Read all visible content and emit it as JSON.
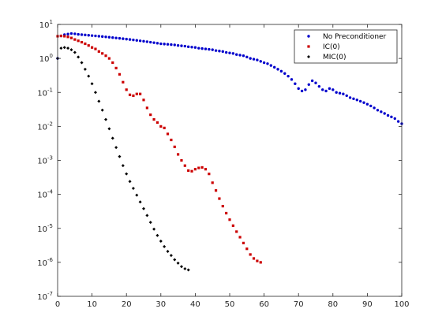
{
  "chart_data": {
    "type": "scatter",
    "title": "",
    "xlabel": "",
    "ylabel": "",
    "xscale": "linear",
    "yscale": "log",
    "xlim": [
      0,
      100
    ],
    "ylim": [
      1e-07,
      10
    ],
    "xticks": [
      0,
      10,
      20,
      30,
      40,
      50,
      60,
      70,
      80,
      90,
      100
    ],
    "xtick_labels": [
      "0",
      "10",
      "20",
      "30",
      "40",
      "50",
      "60",
      "70",
      "80",
      "90",
      "100"
    ],
    "ytick_exponents": [
      1,
      0,
      -1,
      -2,
      -3,
      -4,
      -5,
      -6,
      -7
    ],
    "ytick_base": "10",
    "grid": false,
    "legend_position": "top-right",
    "series": [
      {
        "name": "No Preconditioner",
        "color": "#0000cc",
        "marker": "circle",
        "x": [
          0,
          1,
          2,
          3,
          4,
          5,
          6,
          7,
          8,
          9,
          10,
          11,
          12,
          13,
          14,
          15,
          16,
          17,
          18,
          19,
          20,
          21,
          22,
          23,
          24,
          25,
          26,
          27,
          28,
          29,
          30,
          31,
          32,
          33,
          34,
          35,
          36,
          37,
          38,
          39,
          40,
          41,
          42,
          43,
          44,
          45,
          46,
          47,
          48,
          49,
          50,
          51,
          52,
          53,
          54,
          55,
          56,
          57,
          58,
          59,
          60,
          61,
          62,
          63,
          64,
          65,
          66,
          67,
          68,
          69,
          70,
          71,
          72,
          73,
          74,
          75,
          76,
          77,
          78,
          79,
          80,
          81,
          82,
          83,
          84,
          85,
          86,
          87,
          88,
          89,
          90,
          91,
          92,
          93,
          94,
          95,
          96,
          97,
          98,
          99,
          100
        ],
        "y": [
          1.0,
          4.6,
          5.0,
          5.2,
          5.4,
          5.3,
          5.1,
          5.0,
          4.9,
          4.8,
          4.7,
          4.6,
          4.5,
          4.4,
          4.3,
          4.2,
          4.1,
          4.0,
          3.9,
          3.8,
          3.7,
          3.6,
          3.5,
          3.4,
          3.3,
          3.2,
          3.1,
          3.0,
          2.9,
          2.8,
          2.7,
          2.65,
          2.6,
          2.55,
          2.5,
          2.4,
          2.35,
          2.3,
          2.2,
          2.15,
          2.1,
          2.0,
          1.95,
          1.9,
          1.85,
          1.8,
          1.7,
          1.65,
          1.6,
          1.5,
          1.45,
          1.4,
          1.3,
          1.25,
          1.2,
          1.1,
          1.0,
          0.95,
          0.9,
          0.82,
          0.75,
          0.7,
          0.62,
          0.55,
          0.48,
          0.42,
          0.36,
          0.3,
          0.24,
          0.18,
          0.13,
          0.11,
          0.12,
          0.17,
          0.22,
          0.19,
          0.15,
          0.12,
          0.11,
          0.13,
          0.12,
          0.1,
          0.095,
          0.09,
          0.08,
          0.07,
          0.065,
          0.06,
          0.055,
          0.05,
          0.045,
          0.04,
          0.035,
          0.03,
          0.027,
          0.024,
          0.021,
          0.019,
          0.017,
          0.014,
          0.012
        ]
      },
      {
        "name": "IC(0)",
        "color": "#cc0000",
        "marker": "square",
        "x": [
          0,
          1,
          2,
          3,
          4,
          5,
          6,
          7,
          8,
          9,
          10,
          11,
          12,
          13,
          14,
          15,
          16,
          17,
          18,
          19,
          20,
          21,
          22,
          23,
          24,
          25,
          26,
          27,
          28,
          29,
          30,
          31,
          32,
          33,
          34,
          35,
          36,
          37,
          38,
          39,
          40,
          41,
          42,
          43,
          44,
          45,
          46,
          47,
          48,
          49,
          50,
          51,
          52,
          53,
          54,
          55,
          56,
          57,
          58,
          59
        ],
        "y": [
          4.5,
          4.6,
          4.5,
          4.3,
          4.0,
          3.6,
          3.3,
          3.0,
          2.7,
          2.4,
          2.1,
          1.9,
          1.6,
          1.4,
          1.2,
          1.0,
          0.75,
          0.52,
          0.34,
          0.2,
          0.12,
          0.085,
          0.08,
          0.09,
          0.09,
          0.06,
          0.035,
          0.022,
          0.016,
          0.013,
          0.01,
          0.009,
          0.006,
          0.004,
          0.0025,
          0.0015,
          0.001,
          0.0007,
          0.0005,
          0.00048,
          0.00055,
          0.0006,
          0.00062,
          0.00055,
          0.0004,
          0.00022,
          0.00013,
          7.5e-05,
          4.5e-05,
          2.8e-05,
          1.8e-05,
          1.2e-05,
          8e-06,
          5.5e-06,
          3.7e-06,
          2.5e-06,
          1.7e-06,
          1.3e-06,
          1.1e-06,
          1e-06
        ]
      },
      {
        "name": "MIC(0)",
        "color": "#000000",
        "marker": "diamond",
        "x": [
          0,
          1,
          2,
          3,
          4,
          5,
          6,
          7,
          8,
          9,
          10,
          11,
          12,
          13,
          14,
          15,
          16,
          17,
          18,
          19,
          20,
          21,
          22,
          23,
          24,
          25,
          26,
          27,
          28,
          29,
          30,
          31,
          32,
          33,
          34,
          35,
          36,
          37,
          38
        ],
        "y": [
          1.0,
          2.0,
          2.1,
          2.0,
          1.8,
          1.5,
          1.1,
          0.75,
          0.48,
          0.3,
          0.18,
          0.1,
          0.055,
          0.03,
          0.016,
          0.0085,
          0.0045,
          0.0024,
          0.0013,
          0.0007,
          0.0004,
          0.00024,
          0.00015,
          9.5e-05,
          6e-05,
          3.8e-05,
          2.4e-05,
          1.5e-05,
          9.5e-06,
          6.2e-06,
          4.2e-06,
          2.9e-06,
          2.1e-06,
          1.6e-06,
          1.2e-06,
          9.5e-07,
          7.5e-07,
          6.5e-07,
          6e-07
        ]
      }
    ]
  }
}
